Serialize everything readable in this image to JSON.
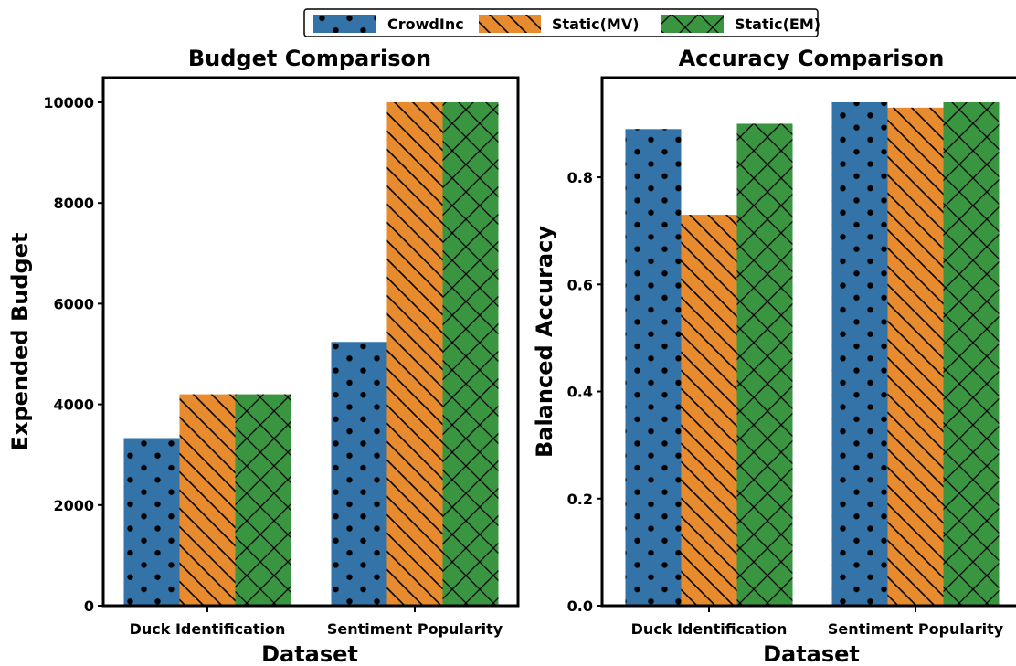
{
  "legend": {
    "placement": "top-center",
    "items": [
      {
        "label": "CrowdInc",
        "color": "#3373a8",
        "hatch": "dots"
      },
      {
        "label": "Static(MV)",
        "color": "#e88a2e",
        "hatch": "diagonal"
      },
      {
        "label": "Static(EM)",
        "color": "#3a9540",
        "hatch": "crosshatch"
      }
    ]
  },
  "chart_data": [
    {
      "type": "bar",
      "title": "Budget Comparison",
      "xlabel": "Dataset",
      "ylabel": "Expended Budget",
      "categories": [
        "Duck Identification",
        "Sentiment Popularity"
      ],
      "series": [
        {
          "name": "CrowdInc",
          "values": [
            3330,
            5240
          ]
        },
        {
          "name": "Static(MV)",
          "values": [
            4200,
            10000
          ]
        },
        {
          "name": "Static(EM)",
          "values": [
            4200,
            10000
          ]
        }
      ],
      "ylim": [
        0,
        10000
      ],
      "yticks": [
        "0",
        "2000",
        "4000",
        "6000",
        "8000",
        "10000"
      ],
      "grid": false
    },
    {
      "type": "bar",
      "title": "Accuracy Comparison",
      "xlabel": "Dataset",
      "ylabel": "Balanced Accuracy",
      "categories": [
        "Duck Identification",
        "Sentiment Popularity"
      ],
      "series": [
        {
          "name": "CrowdInc",
          "values": [
            0.89,
            0.94
          ]
        },
        {
          "name": "Static(MV)",
          "values": [
            0.73,
            0.93
          ]
        },
        {
          "name": "Static(EM)",
          "values": [
            0.9,
            0.94
          ]
        }
      ],
      "ylim": [
        0,
        0.94
      ],
      "yticks": [
        "0.0",
        "0.2",
        "0.4",
        "0.6",
        "0.8"
      ],
      "grid": false
    }
  ]
}
